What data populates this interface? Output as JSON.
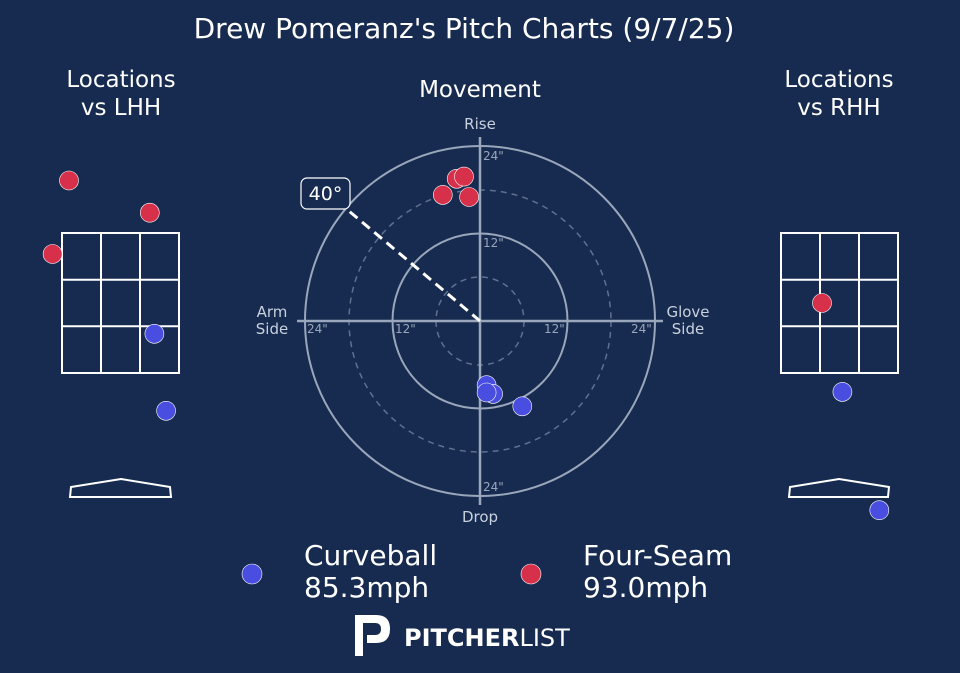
{
  "title": "Drew Pomeranz's Pitch Charts (9/7/25)",
  "panels": {
    "lhh_title_line1": "Locations",
    "lhh_title_line2": "vs LHH",
    "rhh_title_line1": "Locations",
    "rhh_title_line2": "vs RHH",
    "movement_title": "Movement"
  },
  "movement_axis_labels": {
    "top": "Rise",
    "bottom": "Drop",
    "left_line1": "Arm",
    "left_line2": "Side",
    "right_line1": "Glove",
    "right_line2": "Side"
  },
  "ring_labels": {
    "top_outer": "24\"",
    "top_inner": "12\"",
    "left_outer": "24\"",
    "left_inner": "12\"",
    "right_inner": "12\"",
    "right_outer": "24\"",
    "bottom_outer": "24\""
  },
  "arm_angle": {
    "degrees": 40,
    "label": "40°"
  },
  "colors": {
    "background": "#162b4f",
    "curveball": "#4a4ee0",
    "four_seam": "#d6304b",
    "lines": "#ffffff",
    "grid": "#9aa6bb"
  },
  "legend": {
    "curveball_name": "Curveball",
    "curveball_speed": "85.3mph",
    "four_seam_name": "Four-Seam",
    "four_seam_speed": "93.0mph"
  },
  "brand": {
    "strong": "PITCHER",
    "light": "LIST"
  },
  "chart_data": {
    "type": "scatter",
    "movement": {
      "units": "inches",
      "range": [
        -24,
        24
      ],
      "series": [
        {
          "name": "Four-Seam",
          "color": "#d6304b",
          "points": [
            {
              "hb": -1.5,
              "ivb": 17
            },
            {
              "hb": -3.2,
              "ivb": 19.5
            },
            {
              "hb": -2.2,
              "ivb": 19.8
            },
            {
              "hb": -5.1,
              "ivb": 17.3
            }
          ]
        },
        {
          "name": "Curveball",
          "color": "#4a4ee0",
          "points": [
            {
              "hb": 0.9,
              "ivb": -8.8
            },
            {
              "hb": 1.8,
              "ivb": -10
            },
            {
              "hb": 0.9,
              "ivb": -9.8
            },
            {
              "hb": 5.8,
              "ivb": -11.7
            }
          ]
        }
      ]
    },
    "locations_vs_lhh": {
      "zone_cols": 3,
      "zone_rows": 3,
      "pitches": [
        {
          "pitch": "Four-Seam",
          "zx": -0.88,
          "zy": 1.75
        },
        {
          "pitch": "Four-Seam",
          "zx": 0.5,
          "zy": 1.29
        },
        {
          "pitch": "Four-Seam",
          "zx": -1.16,
          "zy": 0.7
        },
        {
          "pitch": "Curveball",
          "zx": 0.58,
          "zy": -0.44
        },
        {
          "pitch": "Curveball",
          "zx": 0.78,
          "zy": -1.54
        }
      ]
    },
    "locations_vs_rhh": {
      "zone_cols": 3,
      "zone_rows": 3,
      "pitches": [
        {
          "pitch": "Four-Seam",
          "zx": -0.3,
          "zy": 0
        },
        {
          "pitch": "Curveball",
          "zx": 0.05,
          "zy": -1.27
        },
        {
          "pitch": "Curveball",
          "zx": 0.68,
          "zy": -2.96
        }
      ]
    }
  }
}
